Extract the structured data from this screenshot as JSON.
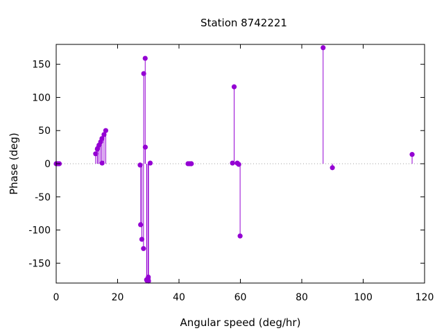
{
  "chart_data": {
    "type": "scatter",
    "style": "impulses-with-points",
    "title": "Station 8742221",
    "xlabel": "Angular speed (deg/hr)",
    "ylabel": "Phase (deg)",
    "xlim": [
      0,
      120
    ],
    "ylim": [
      -180,
      180
    ],
    "xticks": [
      0,
      20,
      40,
      60,
      80,
      100,
      120
    ],
    "yticks": [
      -150,
      -100,
      -50,
      0,
      50,
      100,
      150
    ],
    "xtick_labels": [
      "0",
      "20",
      "40",
      "60",
      "80",
      "100",
      "120"
    ],
    "ytick_labels": [
      "-150",
      "-100",
      "-50",
      "0",
      "50",
      "100",
      "150"
    ],
    "zero_line": "dotted",
    "grid": false,
    "legend": "none",
    "colors": {
      "series": "#9400d3",
      "axes": "#000000",
      "zero_line": "#a0a0a0"
    },
    "series": [
      {
        "points": [
          {
            "x": 0.0,
            "y": 0
          },
          {
            "x": 0.04,
            "y": 0
          },
          {
            "x": 0.08,
            "y": 0
          },
          {
            "x": 0.54,
            "y": 0
          },
          {
            "x": 1.02,
            "y": 0
          },
          {
            "x": 12.85,
            "y": 15
          },
          {
            "x": 13.4,
            "y": 22
          },
          {
            "x": 13.47,
            "y": 23
          },
          {
            "x": 13.94,
            "y": 28
          },
          {
            "x": 14.5,
            "y": 33
          },
          {
            "x": 14.92,
            "y": 38
          },
          {
            "x": 14.96,
            "y": 1
          },
          {
            "x": 15.58,
            "y": 44
          },
          {
            "x": 16.14,
            "y": 50
          },
          {
            "x": 27.34,
            "y": -2
          },
          {
            "x": 27.5,
            "y": -92
          },
          {
            "x": 27.9,
            "y": -114
          },
          {
            "x": 28.44,
            "y": -128
          },
          {
            "x": 28.51,
            "y": 136
          },
          {
            "x": 28.99,
            "y": 159
          },
          {
            "x": 29.03,
            "y": 25
          },
          {
            "x": 29.46,
            "y": -175
          },
          {
            "x": 29.53,
            "y": -176
          },
          {
            "x": 29.96,
            "y": -174
          },
          {
            "x": 30.0,
            "y": -171
          },
          {
            "x": 30.08,
            "y": -177
          },
          {
            "x": 30.63,
            "y": 1
          },
          {
            "x": 42.93,
            "y": 0
          },
          {
            "x": 43.48,
            "y": 0
          },
          {
            "x": 43.94,
            "y": 0
          },
          {
            "x": 44.03,
            "y": 0
          },
          {
            "x": 57.42,
            "y": 1
          },
          {
            "x": 57.97,
            "y": 116
          },
          {
            "x": 58.98,
            "y": 1
          },
          {
            "x": 59.47,
            "y": -1
          },
          {
            "x": 59.91,
            "y": -109
          },
          {
            "x": 86.95,
            "y": 175
          },
          {
            "x": 89.97,
            "y": -6
          },
          {
            "x": 115.94,
            "y": 14
          }
        ]
      }
    ]
  }
}
